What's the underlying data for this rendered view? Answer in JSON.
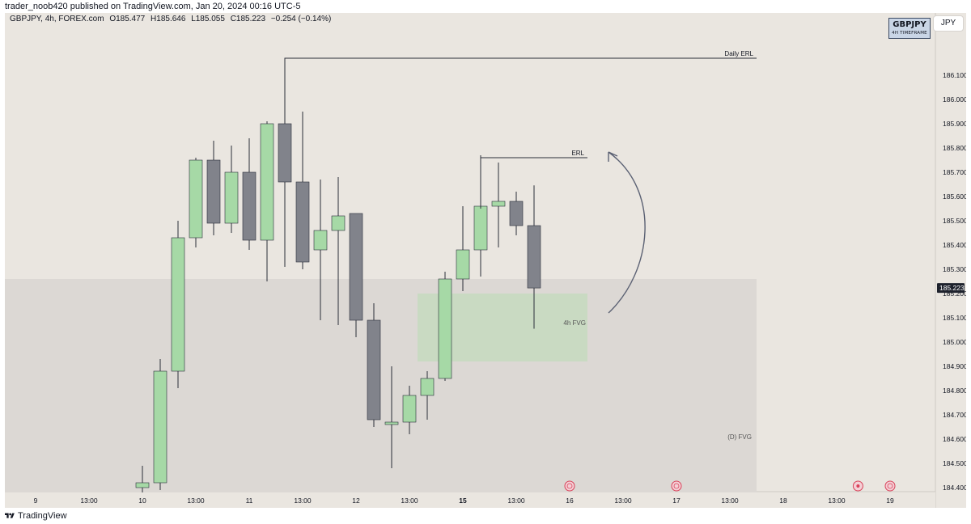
{
  "header": {
    "published_by": "trader_noob420 published on TradingView.com, Jan 20, 2024 00:16 UTC-5"
  },
  "legend": {
    "symbol_info": "GBPJPY, 4h, FOREX.com",
    "open": "O185.477",
    "high": "H185.646",
    "low": "L185.055",
    "close": "C185.223",
    "change": "−0.254 (−0.14%)"
  },
  "badge": {
    "symbol": "GBPJPY",
    "timeframe": "4H TIMEFRAME"
  },
  "currency_button": "JPY",
  "footer": {
    "brand": "TradingView"
  },
  "colors": {
    "bullish": "#a6d9a6",
    "bearish": "#81838b",
    "background": "#eae6e0",
    "daily_fvg_zone": "#dcd8d4",
    "h4_fvg_zone": "#c5dbbe",
    "last_price_tag": "#1e222d"
  },
  "chart_data": {
    "type": "candlestick",
    "price_axis": {
      "ticks": [
        186.1,
        186.0,
        185.9,
        185.8,
        185.7,
        185.6,
        185.5,
        185.4,
        185.3,
        185.2,
        185.1,
        185.0,
        184.9,
        184.8,
        184.7,
        184.6,
        184.5,
        184.4
      ],
      "tick_labels": [
        "186.100",
        "186.000",
        "185.900",
        "185.800",
        "185.700",
        "185.600",
        "185.500",
        "185.400",
        "185.300",
        "185.200",
        "185.100",
        "185.000",
        "184.900",
        "184.800",
        "184.700",
        "184.600",
        "184.500",
        "184.400"
      ],
      "range": [
        184.39,
        186.21
      ],
      "last_price": 185.223,
      "last_price_label": "185.223"
    },
    "time_axis": {
      "labels": [
        {
          "text": "9",
          "bar": -6,
          "bold": false
        },
        {
          "text": "13:00",
          "bar": -3,
          "bold": false
        },
        {
          "text": "10",
          "bar": 0,
          "bold": false
        },
        {
          "text": "13:00",
          "bar": 3,
          "bold": false
        },
        {
          "text": "11",
          "bar": 6,
          "bold": false
        },
        {
          "text": "13:00",
          "bar": 9,
          "bold": false
        },
        {
          "text": "12",
          "bar": 12,
          "bold": false
        },
        {
          "text": "13:00",
          "bar": 15,
          "bold": false
        },
        {
          "text": "15",
          "bar": 18,
          "bold": true
        },
        {
          "text": "13:00",
          "bar": 21,
          "bold": false
        },
        {
          "text": "16",
          "bar": 24,
          "bold": false
        },
        {
          "text": "13:00",
          "bar": 27,
          "bold": false
        },
        {
          "text": "17",
          "bar": 30,
          "bold": false
        },
        {
          "text": "13:00",
          "bar": 33,
          "bold": false
        },
        {
          "text": "18",
          "bar": 36,
          "bold": false
        },
        {
          "text": "13:00",
          "bar": 39,
          "bold": false
        },
        {
          "text": "19",
          "bar": 42,
          "bold": false
        }
      ]
    },
    "candles": [
      {
        "o": 184.4,
        "h": 184.49,
        "l": 184.38,
        "c": 184.42
      },
      {
        "o": 184.42,
        "h": 184.93,
        "l": 184.39,
        "c": 184.88
      },
      {
        "o": 184.88,
        "h": 185.5,
        "l": 184.81,
        "c": 185.43
      },
      {
        "o": 185.43,
        "h": 185.76,
        "l": 185.39,
        "c": 185.75
      },
      {
        "o": 185.75,
        "h": 185.83,
        "l": 185.44,
        "c": 185.49
      },
      {
        "o": 185.49,
        "h": 185.81,
        "l": 185.45,
        "c": 185.7
      },
      {
        "o": 185.7,
        "h": 185.84,
        "l": 185.38,
        "c": 185.42
      },
      {
        "o": 185.42,
        "h": 185.91,
        "l": 185.25,
        "c": 185.9
      },
      {
        "o": 185.9,
        "h": 186.17,
        "l": 185.31,
        "c": 185.66
      },
      {
        "o": 185.66,
        "h": 185.95,
        "l": 185.3,
        "c": 185.33
      },
      {
        "o": 185.38,
        "h": 185.67,
        "l": 185.09,
        "c": 185.46
      },
      {
        "o": 185.46,
        "h": 185.68,
        "l": 185.07,
        "c": 185.52
      },
      {
        "o": 185.53,
        "h": 185.53,
        "l": 185.02,
        "c": 185.09
      },
      {
        "o": 185.09,
        "h": 185.16,
        "l": 184.65,
        "c": 184.68
      },
      {
        "o": 184.66,
        "h": 184.9,
        "l": 184.48,
        "c": 184.67
      },
      {
        "o": 184.67,
        "h": 184.82,
        "l": 184.62,
        "c": 184.78
      },
      {
        "o": 184.78,
        "h": 184.88,
        "l": 184.68,
        "c": 184.85
      },
      {
        "o": 184.85,
        "h": 185.29,
        "l": 184.84,
        "c": 185.26
      },
      {
        "o": 185.26,
        "h": 185.56,
        "l": 185.21,
        "c": 185.38
      },
      {
        "o": 185.38,
        "h": 185.77,
        "l": 185.27,
        "c": 185.56
      },
      {
        "o": 185.56,
        "h": 185.74,
        "l": 185.39,
        "c": 185.58
      },
      {
        "o": 185.58,
        "h": 185.62,
        "l": 185.44,
        "c": 185.48
      },
      {
        "o": 185.48,
        "h": 185.646,
        "l": 185.055,
        "c": 185.223
      }
    ],
    "annotations": {
      "daily_erl": {
        "label": "Daily ERL",
        "price": 186.17,
        "from_bar": 8,
        "to_bar": 34.5
      },
      "erl": {
        "label": "ERL",
        "price": 185.76,
        "from_bar": 19,
        "to_bar": 25
      },
      "h4_fvg": {
        "label": "4h FVG",
        "top": 185.2,
        "bottom": 184.92,
        "from_bar": 16,
        "to_bar": 25
      },
      "daily_fvg": {
        "label": "(D) FVG",
        "top": 185.26,
        "bottom": 184.38,
        "from_bar": -7.5,
        "to_bar": 34.5
      }
    },
    "event_markers": [
      {
        "bar": 24,
        "type": "earnings"
      },
      {
        "bar": 30,
        "type": "earnings"
      },
      {
        "bar": 40.2,
        "type": "target"
      },
      {
        "bar": 42,
        "type": "earnings"
      }
    ]
  }
}
